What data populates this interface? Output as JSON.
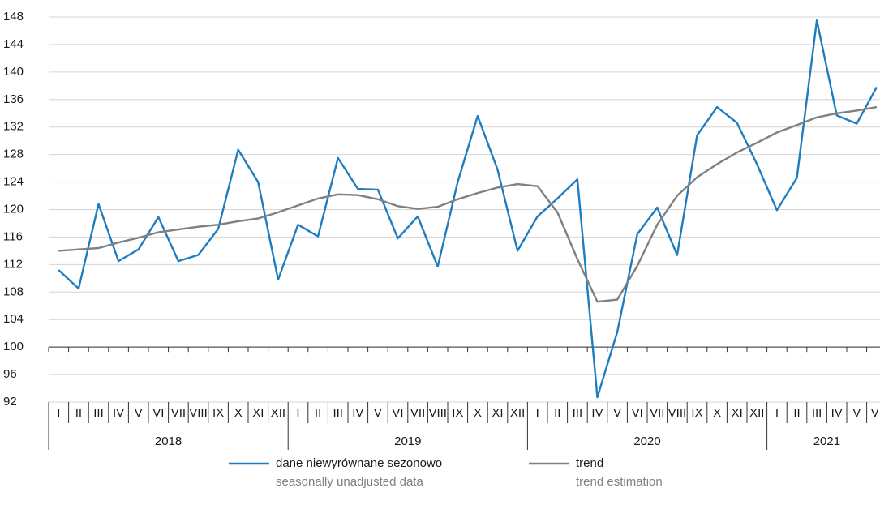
{
  "chart_data": {
    "type": "line",
    "categories": [
      "I",
      "II",
      "III",
      "IV",
      "V",
      "VI",
      "VII",
      "VIII",
      "IX",
      "X",
      "XI",
      "XII",
      "I",
      "II",
      "III",
      "IV",
      "V",
      "VI",
      "VII",
      "VIII",
      "IX",
      "X",
      "XI",
      "XII",
      "I",
      "II",
      "III",
      "IV",
      "V",
      "VI",
      "VII",
      "VIII",
      "IX",
      "X",
      "XI",
      "XII",
      "I",
      "II",
      "III",
      "IV",
      "V",
      "VI"
    ],
    "x_groups": [
      "2018",
      "2019",
      "2020",
      "2021"
    ],
    "series": [
      {
        "name": "dane niewyrównane sezonowo",
        "name_en": "seasonally unadjusted data",
        "color": "#1f7dbf",
        "values": [
          111.2,
          108.5,
          120.8,
          112.5,
          114.2,
          118.9,
          112.5,
          113.4,
          117.2,
          128.7,
          124.0,
          109.8,
          117.8,
          116.1,
          127.5,
          123.0,
          122.9,
          115.8,
          119.0,
          111.7,
          124.0,
          133.6,
          125.8,
          114.0,
          119.0,
          121.6,
          124.4,
          92.7,
          102.2,
          116.4,
          120.3,
          113.4,
          130.8,
          134.9,
          132.6,
          126.6,
          119.9,
          124.6,
          147.5,
          133.7,
          132.5,
          137.8
        ]
      },
      {
        "name": "trend",
        "name_en": "trend estimation",
        "color": "#808080",
        "values": [
          114.0,
          114.2,
          114.4,
          115.2,
          115.9,
          116.7,
          117.1,
          117.5,
          117.8,
          118.3,
          118.7,
          119.6,
          120.6,
          121.6,
          122.2,
          122.1,
          121.5,
          120.5,
          120.1,
          120.4,
          121.5,
          122.4,
          123.2,
          123.7,
          123.4,
          119.6,
          112.8,
          106.6,
          106.9,
          111.8,
          117.8,
          122.0,
          124.7,
          126.6,
          128.3,
          129.7,
          131.2,
          132.3,
          133.4,
          134.0,
          134.4,
          134.9
        ]
      }
    ],
    "ylim": [
      92,
      148
    ],
    "yticks": [
      92,
      96,
      100,
      104,
      108,
      112,
      116,
      120,
      124,
      128,
      132,
      136,
      140,
      144,
      148
    ],
    "baseline": 100,
    "grid": true,
    "legend": "bottom"
  }
}
